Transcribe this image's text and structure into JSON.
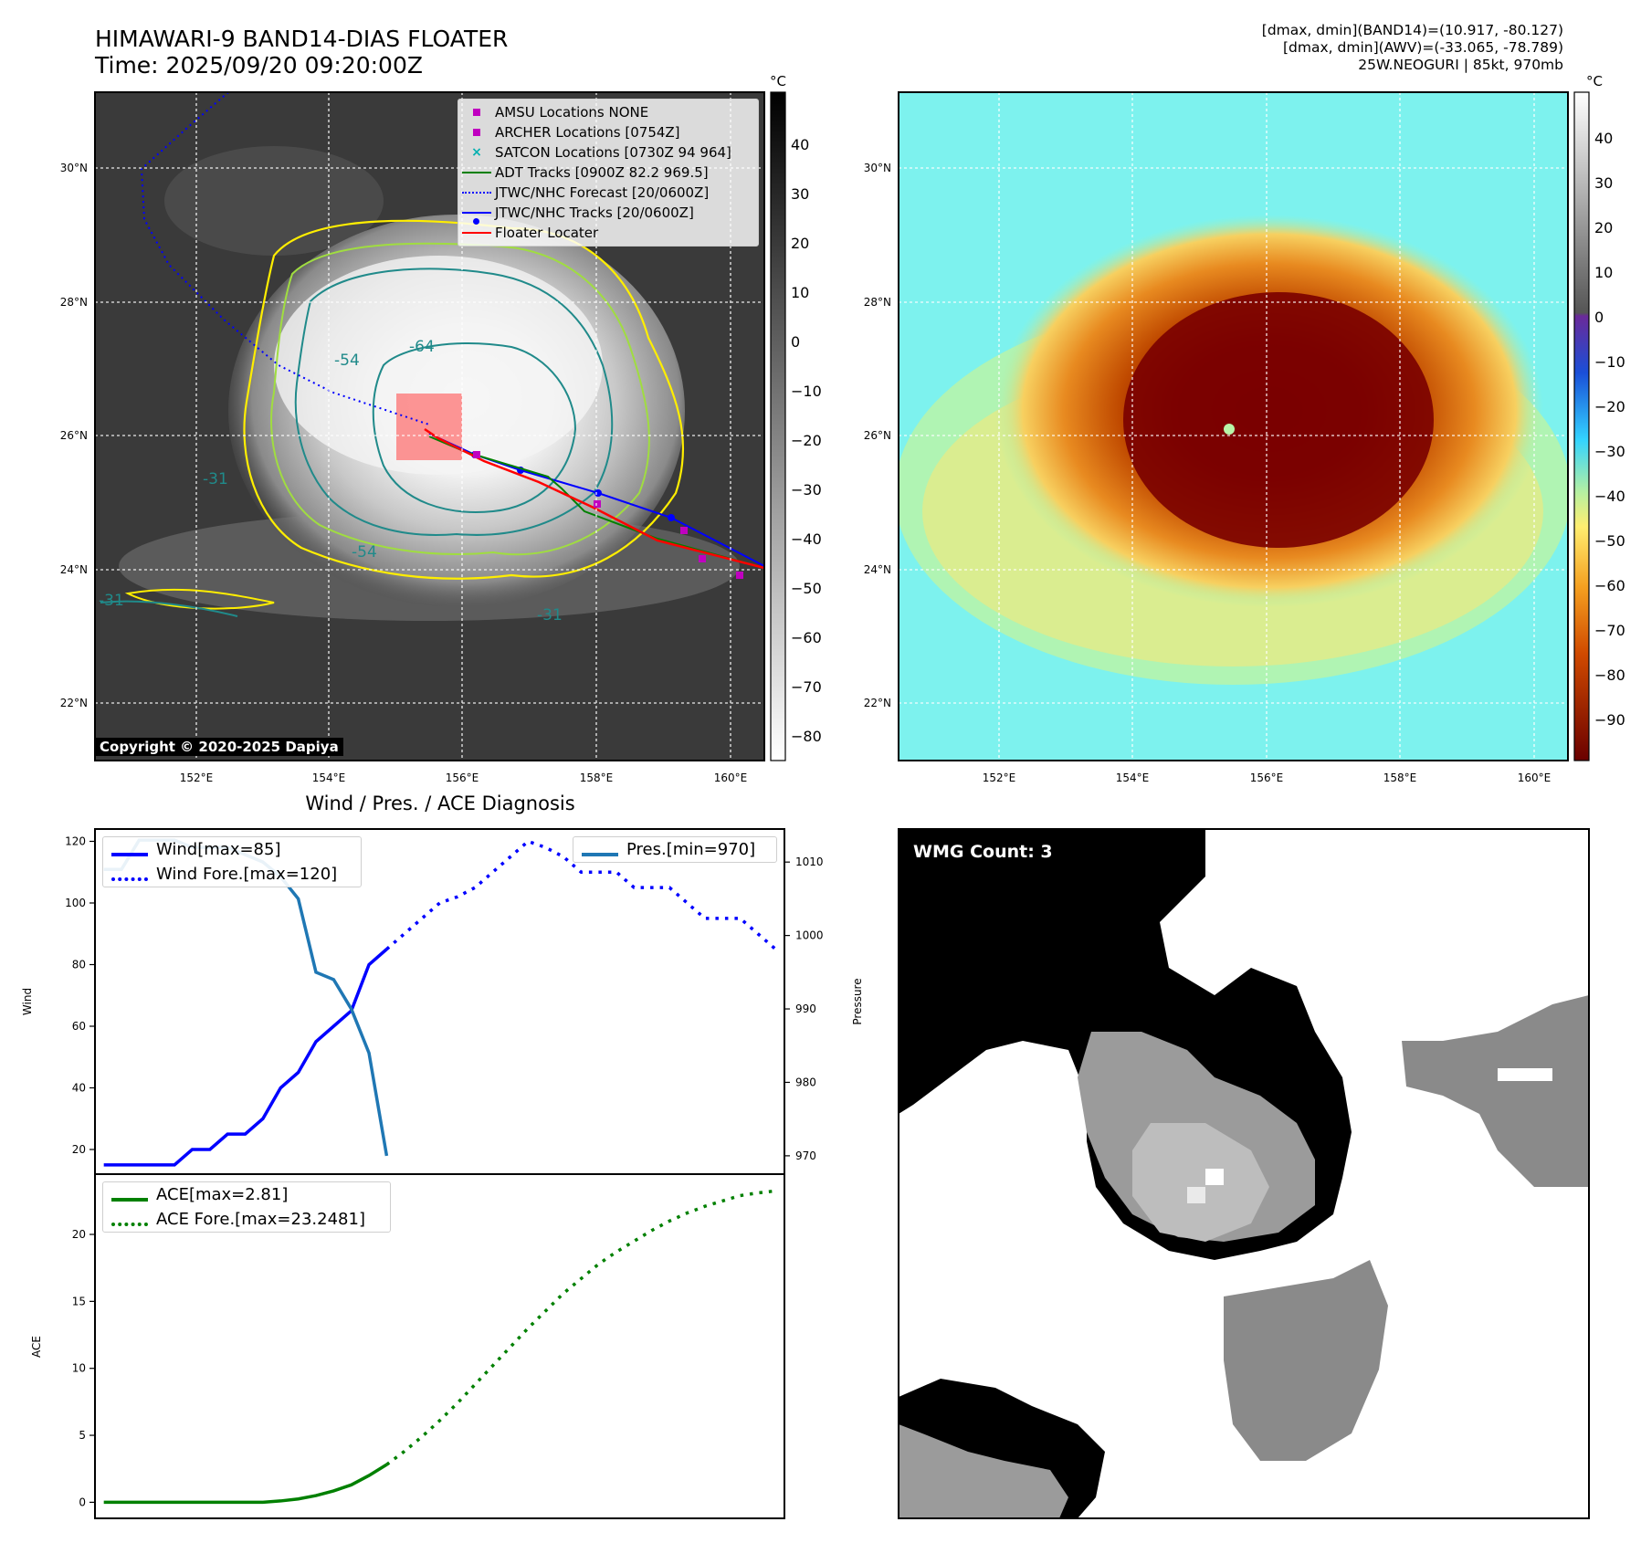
{
  "header": {
    "title_line1": "HIMAWARI-9 BAND14-DIAS FLOATER",
    "title_line2": "Time: 2025/09/20 09:20:00Z",
    "info_line1": "[dmax, dmin](BAND14)=(10.917, -80.127)",
    "info_line2": "[dmax, dmin](AWV)=(-33.065, -78.789)",
    "info_line3": "25W.NEOGURI | 85kt, 970mb"
  },
  "maps": {
    "lat_labels": [
      "30°N",
      "28°N",
      "26°N",
      "24°N",
      "22°N"
    ],
    "lon_labels": [
      "152°E",
      "154°E",
      "156°E",
      "158°E",
      "160°E"
    ],
    "copyright": "Copyright © 2020-2025 Dapiya",
    "contour_labels": [
      "-54",
      "-64",
      "-31",
      "-54",
      "-31",
      "-31"
    ],
    "colorbar1": {
      "unit": "°C",
      "ticks": [
        "40",
        "30",
        "20",
        "10",
        "0",
        "−10",
        "−20",
        "−30",
        "−40",
        "−50",
        "−60",
        "−70",
        "−80"
      ]
    },
    "colorbar2": {
      "unit": "°C",
      "ticks": [
        "40",
        "30",
        "20",
        "10",
        "0",
        "−10",
        "−20",
        "−30",
        "−40",
        "−50",
        "−60",
        "−70",
        "−80",
        "−90"
      ]
    },
    "legend": [
      {
        "label": "AMSU Locations NONE",
        "marker": "square",
        "color": "#c000c0"
      },
      {
        "label": "ARCHER Locations [0754Z]",
        "marker": "square",
        "color": "#c000c0"
      },
      {
        "label": "SATCON Locations [0730Z 94 964]",
        "marker": "x",
        "color": "#00b0b0"
      },
      {
        "label": "ADT Tracks [0900Z 82.2 969.5]",
        "marker": "line",
        "color": "#008000"
      },
      {
        "label": "JTWC/NHC Forecast [20/0600Z]",
        "marker": "dotted",
        "color": "#0000ff"
      },
      {
        "label": "JTWC/NHC Tracks [20/0600Z]",
        "marker": "line-dot",
        "color": "#0000ff"
      },
      {
        "label": "Floater Locater",
        "marker": "line",
        "color": "#ff0000"
      }
    ]
  },
  "wmg": {
    "label": "WMG Count: 3"
  },
  "chart_data": [
    {
      "type": "line",
      "title": "Wind / Pres. / ACE Diagnosis",
      "ylabel": "Wind",
      "ylabel_right": "Pressure",
      "ylim": [
        12,
        124
      ],
      "ylim_right": [
        967.5,
        1014.5
      ],
      "yticks": [
        20,
        40,
        60,
        80,
        100,
        120
      ],
      "yticks_right": [
        970,
        980,
        990,
        1000,
        1010
      ],
      "series": [
        {
          "name": "Wind[max=85]",
          "axis": "left",
          "style": "solid",
          "color": "#0000ff",
          "x": [
            0,
            1,
            2,
            3,
            4,
            5,
            6,
            7,
            8,
            9,
            10,
            11,
            12,
            13,
            14,
            15,
            16
          ],
          "values": [
            15,
            15,
            15,
            15,
            15,
            20,
            20,
            25,
            25,
            30,
            40,
            45,
            55,
            60,
            65,
            80,
            85
          ]
        },
        {
          "name": "Wind Fore.[max=120]",
          "axis": "left",
          "style": "dotted",
          "color": "#0000ff",
          "x": [
            16,
            17,
            18,
            19,
            20,
            21,
            22,
            23,
            24,
            25,
            26,
            27,
            28,
            29,
            30,
            31,
            32,
            33,
            34,
            35,
            36,
            37,
            38
          ],
          "values": [
            85,
            90,
            95,
            100,
            102,
            105,
            110,
            115,
            120,
            118,
            115,
            110,
            110,
            110,
            105,
            105,
            105,
            100,
            95,
            95,
            95,
            90,
            85
          ]
        },
        {
          "name": "Pres.[min=970]",
          "axis": "right",
          "style": "solid",
          "color": "#1f77b4",
          "x": [
            0,
            1,
            2,
            3,
            4,
            5,
            6,
            7,
            8,
            9,
            10,
            11,
            12,
            13,
            14,
            15,
            16
          ],
          "values": [
            1009,
            1009,
            1013,
            1013,
            1013,
            1012,
            1012,
            1012,
            1011,
            1010,
            1008,
            1005,
            995,
            994,
            990,
            984,
            970
          ]
        }
      ],
      "legend_left": [
        "Wind[max=85]",
        "Wind Fore.[max=120]"
      ],
      "legend_right": [
        "Pres.[min=970]"
      ]
    },
    {
      "type": "line",
      "ylabel": "ACE",
      "ylim": [
        -1.2,
        24.5
      ],
      "yticks": [
        0,
        5,
        10,
        15,
        20
      ],
      "series": [
        {
          "name": "ACE[max=2.81]",
          "style": "solid",
          "color": "#008000",
          "x": [
            0,
            1,
            2,
            3,
            4,
            5,
            6,
            7,
            8,
            9,
            10,
            11,
            12,
            13,
            14,
            15,
            16
          ],
          "values": [
            0,
            0,
            0,
            0,
            0,
            0,
            0,
            0,
            0,
            0,
            0.1,
            0.25,
            0.5,
            0.85,
            1.3,
            2.0,
            2.81
          ]
        },
        {
          "name": "ACE Fore.[max=23.2481]",
          "style": "dotted",
          "color": "#008000",
          "x": [
            16,
            17,
            18,
            19,
            20,
            21,
            22,
            23,
            24,
            25,
            26,
            27,
            28,
            29,
            30,
            31,
            32,
            33,
            34,
            35,
            36,
            37,
            38
          ],
          "values": [
            2.81,
            3.8,
            4.9,
            6.1,
            7.4,
            8.8,
            10.2,
            11.6,
            13.0,
            14.3,
            15.6,
            16.7,
            17.8,
            18.7,
            19.5,
            20.3,
            21.0,
            21.6,
            22.1,
            22.5,
            22.9,
            23.1,
            23.2481
          ]
        }
      ]
    }
  ]
}
